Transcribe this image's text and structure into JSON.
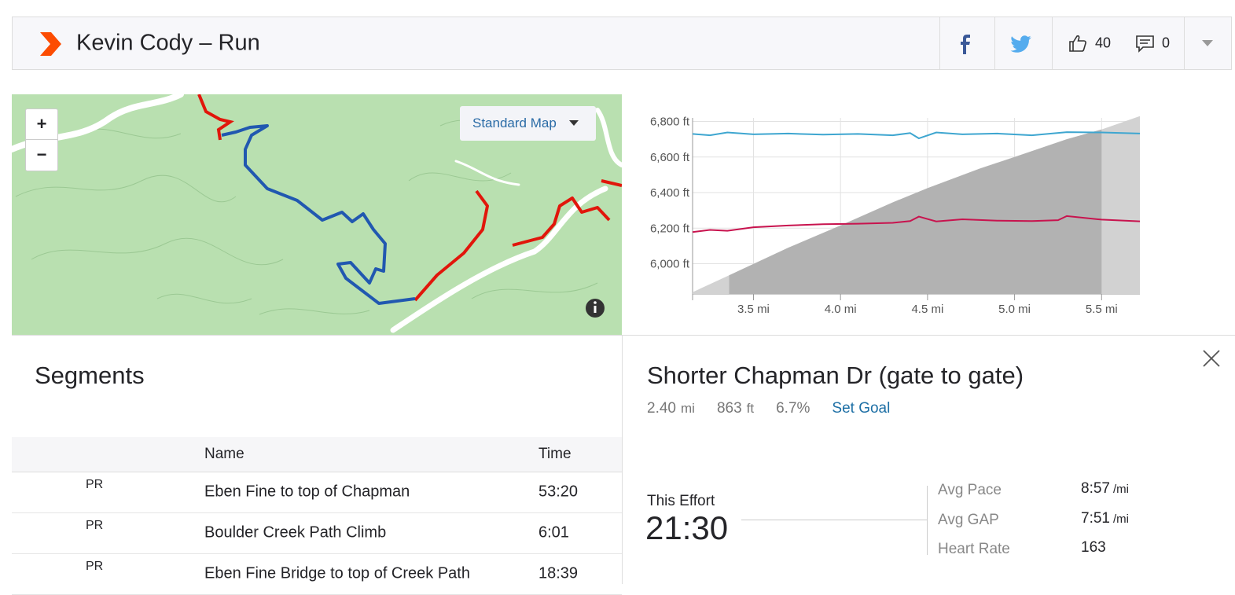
{
  "header": {
    "title": "Kevin Cody – Run",
    "kudos": 40,
    "comments": 0
  },
  "map": {
    "zoom_in": "+",
    "zoom_out": "−",
    "layer": "Standard Map"
  },
  "chart_data": {
    "type": "area",
    "color": "#d2d2d2",
    "highlight": [
      3.36,
      5.5
    ],
    "highlight_color": "#b2b2b2",
    "x": [
      3.15,
      3.36,
      3.7,
      4.0,
      4.3,
      4.5,
      4.8,
      5.0,
      5.3,
      5.5,
      5.72
    ],
    "values": [
      5840,
      5935,
      6090,
      6215,
      6345,
      6425,
      6535,
      6600,
      6700,
      6755,
      6830
    ],
    "lines": [
      {
        "color": "#3ea6d0",
        "x": [
          3.15,
          3.25,
          3.35,
          3.5,
          3.7,
          3.9,
          4.1,
          4.3,
          4.4,
          4.45,
          4.55,
          4.7,
          4.9,
          5.1,
          5.3,
          5.5,
          5.72
        ],
        "values": [
          6730,
          6722,
          6738,
          6728,
          6732,
          6726,
          6730,
          6722,
          6735,
          6705,
          6738,
          6728,
          6732,
          6722,
          6740,
          6738,
          6732
        ]
      },
      {
        "color": "#c8134e",
        "x": [
          3.15,
          3.25,
          3.35,
          3.5,
          3.7,
          3.9,
          4.1,
          4.3,
          4.4,
          4.45,
          4.55,
          4.7,
          4.9,
          5.1,
          5.25,
          5.3,
          5.5,
          5.72
        ],
        "values": [
          6178,
          6190,
          6185,
          6205,
          6215,
          6222,
          6225,
          6230,
          6240,
          6265,
          6238,
          6250,
          6242,
          6240,
          6245,
          6268,
          6248,
          6238
        ]
      }
    ],
    "xlim": [
      3.15,
      5.72
    ],
    "ylim": [
      5830,
      6820
    ],
    "xticks": [
      {
        "value": 3.5,
        "label": "3.5 mi"
      },
      {
        "value": 4.0,
        "label": "4.0 mi"
      },
      {
        "value": 4.5,
        "label": "4.5 mi"
      },
      {
        "value": 5.0,
        "label": "5.0 mi"
      },
      {
        "value": 5.5,
        "label": "5.5 mi"
      }
    ],
    "yticks": [
      {
        "value": 6000,
        "label": "6,000 ft"
      },
      {
        "value": 6200,
        "label": "6,200 ft"
      },
      {
        "value": 6400,
        "label": "6,400 ft"
      },
      {
        "value": 6600,
        "label": "6,600 ft"
      },
      {
        "value": 6800,
        "label": "6,800 ft"
      }
    ],
    "grid": true
  },
  "segments": {
    "title": "Segments",
    "columns": [
      "Name",
      "Time"
    ],
    "rows": [
      {
        "badge": "PR",
        "name": "Eben Fine to top of Chapman",
        "time": "53:20"
      },
      {
        "badge": "PR",
        "name": "Boulder Creek Path Climb",
        "time": "6:01"
      },
      {
        "badge": "PR",
        "name": "Eben Fine Bridge to top of Creek Path",
        "time": "18:39"
      }
    ]
  },
  "detail": {
    "title": "Shorter Chapman Dr (gate to gate)",
    "stats": [
      {
        "value": "2.40",
        "unit": "mi"
      },
      {
        "value": "863",
        "unit": "ft"
      },
      {
        "value": "6.7%",
        "unit": ""
      }
    ],
    "set_goal": "Set Goal",
    "effort_label": "This Effort",
    "effort_time": "21:30",
    "metrics": [
      {
        "label": "Avg Pace",
        "value": "8:57",
        "unit": "/mi"
      },
      {
        "label": "Avg GAP",
        "value": "7:51",
        "unit": "/mi"
      },
      {
        "label": "Heart Rate",
        "value": "163",
        "unit": ""
      }
    ]
  }
}
